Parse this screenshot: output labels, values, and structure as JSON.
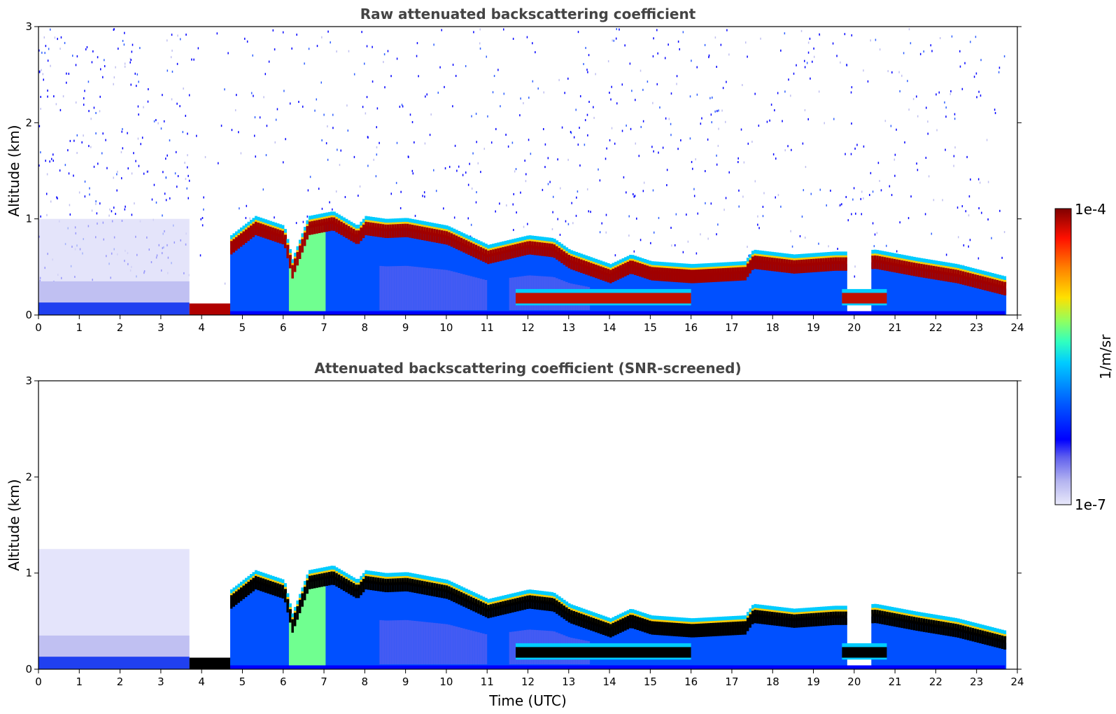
{
  "chart_data": [
    {
      "type": "heatmap",
      "id": "raw",
      "title": "Raw attenuated backscattering coefficient",
      "xlabel": "",
      "ylabel": "Altitude (km)",
      "xlim": [
        0,
        24
      ],
      "ylim": [
        0,
        3
      ],
      "xticks": [
        0,
        1,
        2,
        3,
        4,
        5,
        6,
        7,
        8,
        9,
        10,
        11,
        12,
        13,
        14,
        15,
        16,
        17,
        18,
        19,
        20,
        21,
        22,
        23,
        24
      ],
      "yticks": [
        0,
        1,
        2,
        3
      ],
      "data_extent_hours": [
        0,
        23.7
      ],
      "cloud_top_km": [
        [
          0,
          0.1
        ],
        [
          3.7,
          0.12
        ],
        [
          4.7,
          0.75
        ],
        [
          5.3,
          0.95
        ],
        [
          6.0,
          0.85
        ],
        [
          6.2,
          0.5
        ],
        [
          6.6,
          0.95
        ],
        [
          7.2,
          1.0
        ],
        [
          7.8,
          0.85
        ],
        [
          8.0,
          0.95
        ],
        [
          8.5,
          0.92
        ],
        [
          9.0,
          0.93
        ],
        [
          10.0,
          0.85
        ],
        [
          11.0,
          0.65
        ],
        [
          12.0,
          0.75
        ],
        [
          12.6,
          0.72
        ],
        [
          13.0,
          0.6
        ],
        [
          14.0,
          0.45
        ],
        [
          14.5,
          0.55
        ],
        [
          15.0,
          0.48
        ],
        [
          16.0,
          0.45
        ],
        [
          17.3,
          0.48
        ],
        [
          17.5,
          0.6
        ],
        [
          18.5,
          0.55
        ],
        [
          19.5,
          0.58
        ],
        [
          19.8,
          0.58
        ],
        [
          20.5,
          0.6
        ],
        [
          21.5,
          0.52
        ],
        [
          22.5,
          0.45
        ],
        [
          23.7,
          0.32
        ]
      ],
      "colorbar": {
        "min_label": "1e-7",
        "max_label": "1e-4",
        "unit": "1/m/sr"
      }
    },
    {
      "type": "heatmap",
      "id": "snr",
      "title": "Attenuated backscattering coefficient (SNR-screened)",
      "xlabel": "Time (UTC)",
      "ylabel": "Altitude (km)",
      "xlim": [
        0,
        24
      ],
      "ylim": [
        0,
        3
      ],
      "xticks": [
        0,
        1,
        2,
        3,
        4,
        5,
        6,
        7,
        8,
        9,
        10,
        11,
        12,
        13,
        14,
        15,
        16,
        17,
        18,
        19,
        20,
        21,
        22,
        23,
        24
      ],
      "yticks": [
        0,
        1,
        2,
        3
      ],
      "data_extent_hours": [
        0,
        23.7
      ],
      "cloud_top_km": [
        [
          0,
          0.1
        ],
        [
          3.7,
          0.12
        ],
        [
          4.7,
          0.75
        ],
        [
          5.3,
          0.95
        ],
        [
          6.0,
          0.85
        ],
        [
          6.2,
          0.5
        ],
        [
          6.6,
          0.95
        ],
        [
          7.2,
          1.0
        ],
        [
          7.8,
          0.85
        ],
        [
          8.0,
          0.95
        ],
        [
          8.5,
          0.92
        ],
        [
          9.0,
          0.93
        ],
        [
          10.0,
          0.85
        ],
        [
          11.0,
          0.65
        ],
        [
          12.0,
          0.75
        ],
        [
          12.6,
          0.72
        ],
        [
          13.0,
          0.6
        ],
        [
          14.0,
          0.45
        ],
        [
          14.5,
          0.55
        ],
        [
          15.0,
          0.48
        ],
        [
          16.0,
          0.45
        ],
        [
          17.3,
          0.48
        ],
        [
          17.5,
          0.6
        ],
        [
          18.5,
          0.55
        ],
        [
          19.5,
          0.58
        ],
        [
          19.8,
          0.58
        ],
        [
          20.5,
          0.6
        ],
        [
          21.5,
          0.52
        ],
        [
          22.5,
          0.45
        ],
        [
          23.7,
          0.32
        ]
      ],
      "colorbar": {
        "min_label": "1e-7",
        "max_label": "1e-4",
        "unit": "1/m/sr"
      }
    }
  ],
  "colors": {
    "colormap": [
      "#e8e8fa",
      "#b4b4f0",
      "#8080ec",
      "#0000ff",
      "#0040ff",
      "#0090ff",
      "#00d0ff",
      "#30ffd0",
      "#80ff80",
      "#d0ff30",
      "#ffd000",
      "#ff8000",
      "#ff2000",
      "#b00000",
      "#800000"
    ],
    "screened_max": "#000000",
    "title_text": "#444444"
  }
}
